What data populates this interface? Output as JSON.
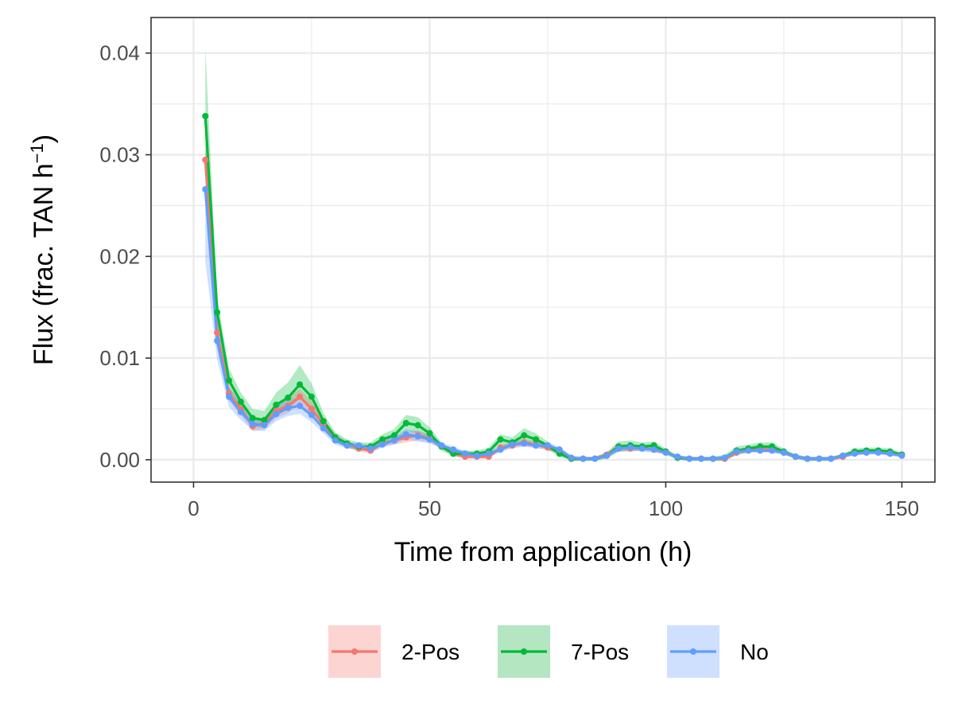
{
  "chart_data": {
    "type": "line",
    "title": "",
    "xlabel": "Time from application (h)",
    "ylabel": "Flux (frac. TAN h",
    "ylabel_superscript": "−1",
    "ylabel_close": ")",
    "xlim": [
      -9,
      157
    ],
    "ylim": [
      -0.0022,
      0.0435
    ],
    "x_ticks": [
      0,
      50,
      100,
      150
    ],
    "x_tick_labels": [
      "0",
      "50",
      "100",
      "150"
    ],
    "y_ticks": [
      0,
      0.01,
      0.02,
      0.03,
      0.04
    ],
    "y_tick_labels": [
      "0.00",
      "0.01",
      "0.02",
      "0.03",
      "0.04"
    ],
    "grid": true,
    "legend_position": "bottom",
    "x": [
      2.5,
      5,
      7.5,
      10,
      12.5,
      15,
      17.5,
      20,
      22.5,
      25,
      27.5,
      30,
      32.5,
      35,
      37.5,
      40,
      42.5,
      45,
      47.5,
      50,
      52.5,
      55,
      57.5,
      60,
      62.5,
      65,
      67.5,
      70,
      72.5,
      75,
      77.5,
      80,
      82.5,
      85,
      87.5,
      90,
      92.5,
      95,
      97.5,
      100,
      102.5,
      105,
      107.5,
      110,
      112.5,
      115,
      117.5,
      120,
      122.5,
      125,
      127.5,
      130,
      132.5,
      135,
      137.5,
      140,
      142.5,
      145,
      147.5,
      150
    ],
    "series": [
      {
        "name": "2-Pos",
        "color": "#F8766D",
        "fill": "#fcd5d2",
        "values": [
          0.0295,
          0.0125,
          0.0065,
          0.005,
          0.0033,
          0.0036,
          0.0048,
          0.0053,
          0.0062,
          0.005,
          0.0035,
          0.0022,
          0.0015,
          0.0011,
          0.0009,
          0.0016,
          0.0019,
          0.0022,
          0.0024,
          0.0021,
          0.0014,
          0.0006,
          0.0003,
          0.0003,
          0.0003,
          0.0012,
          0.0014,
          0.0017,
          0.0015,
          0.0012,
          0.0008,
          0.0001,
          0.0001,
          0.0001,
          0.0005,
          0.0012,
          0.0011,
          0.0012,
          0.001,
          0.0008,
          0.0002,
          0.0001,
          0.0001,
          0.0001,
          0.0001,
          0.0007,
          0.001,
          0.0011,
          0.001,
          0.0007,
          0.0003,
          0.0001,
          0.0001,
          0.0001,
          0.0003,
          0.0007,
          0.0008,
          0.0008,
          0.0006,
          0.0005
        ],
        "upper": [
          0.031,
          0.0135,
          0.0072,
          0.0056,
          0.0038,
          0.0042,
          0.0055,
          0.006,
          0.007,
          0.0057,
          0.004,
          0.0026,
          0.0018,
          0.0014,
          0.0012,
          0.0019,
          0.0023,
          0.0027,
          0.0029,
          0.0025,
          0.0017,
          0.0008,
          0.0005,
          0.0005,
          0.0005,
          0.0015,
          0.0017,
          0.0021,
          0.0018,
          0.0015,
          0.001,
          0.0003,
          0.0003,
          0.0003,
          0.0008,
          0.0016,
          0.0014,
          0.0015,
          0.0013,
          0.001,
          0.0004,
          0.0003,
          0.0003,
          0.0003,
          0.0003,
          0.001,
          0.0013,
          0.0014,
          0.0013,
          0.0009,
          0.0005,
          0.0003,
          0.0003,
          0.0003,
          0.0005,
          0.0009,
          0.001,
          0.001,
          0.0008,
          0.0007
        ],
        "lower": [
          0.028,
          0.0115,
          0.0058,
          0.0044,
          0.0028,
          0.003,
          0.0041,
          0.0046,
          0.0054,
          0.0043,
          0.003,
          0.0018,
          0.0012,
          0.0008,
          0.0006,
          0.0013,
          0.0015,
          0.0017,
          0.0019,
          0.0017,
          0.0011,
          0.0004,
          0.0001,
          0.0001,
          0.0001,
          0.0009,
          0.0011,
          0.0013,
          0.0012,
          0.0009,
          0.0006,
          -0.0001,
          -0.0001,
          -0.0001,
          0.0002,
          0.0008,
          0.0008,
          0.0009,
          0.0007,
          0.0006,
          0.0,
          -0.0001,
          -0.0001,
          -0.0001,
          -0.0001,
          0.0004,
          0.0007,
          0.0008,
          0.0007,
          0.0005,
          0.0001,
          -0.0001,
          -0.0001,
          -0.0001,
          0.0001,
          0.0005,
          0.0006,
          0.0006,
          0.0004,
          0.0003
        ]
      },
      {
        "name": "7-Pos",
        "color": "#00BA38",
        "fill": "#b3e6c1",
        "values": [
          0.0338,
          0.0145,
          0.0078,
          0.0057,
          0.0041,
          0.0039,
          0.0054,
          0.0061,
          0.0074,
          0.0062,
          0.0038,
          0.0022,
          0.0016,
          0.0013,
          0.0013,
          0.002,
          0.0024,
          0.0036,
          0.0034,
          0.0026,
          0.0013,
          0.0006,
          0.0006,
          0.0006,
          0.0008,
          0.002,
          0.0017,
          0.0024,
          0.002,
          0.0014,
          0.0006,
          0.0001,
          0.0001,
          0.0001,
          0.0004,
          0.0013,
          0.0014,
          0.0013,
          0.0014,
          0.0008,
          0.0002,
          0.0001,
          0.0001,
          0.0001,
          0.0002,
          0.0009,
          0.0011,
          0.0013,
          0.0013,
          0.0008,
          0.0003,
          0.0001,
          0.0001,
          0.0001,
          0.0004,
          0.0008,
          0.0009,
          0.0009,
          0.0008,
          0.0005
        ],
        "upper": [
          0.0405,
          0.016,
          0.009,
          0.0066,
          0.005,
          0.0048,
          0.0066,
          0.0076,
          0.0093,
          0.0075,
          0.0046,
          0.0027,
          0.002,
          0.0017,
          0.0017,
          0.0025,
          0.003,
          0.0044,
          0.0042,
          0.0032,
          0.0017,
          0.0009,
          0.0009,
          0.0009,
          0.0012,
          0.0025,
          0.0022,
          0.0031,
          0.0026,
          0.0018,
          0.0009,
          0.0003,
          0.0003,
          0.0003,
          0.0007,
          0.0018,
          0.0019,
          0.0017,
          0.0018,
          0.0011,
          0.0004,
          0.0003,
          0.0003,
          0.0003,
          0.0005,
          0.0013,
          0.0015,
          0.0017,
          0.0017,
          0.0011,
          0.0005,
          0.0003,
          0.0003,
          0.0003,
          0.0006,
          0.0011,
          0.0012,
          0.0012,
          0.0011,
          0.0007
        ],
        "lower": [
          0.029,
          0.013,
          0.0066,
          0.0048,
          0.0033,
          0.0031,
          0.0044,
          0.005,
          0.006,
          0.005,
          0.003,
          0.0017,
          0.0012,
          0.0009,
          0.0009,
          0.0015,
          0.0018,
          0.0028,
          0.0026,
          0.002,
          0.0009,
          0.0003,
          0.0003,
          0.0003,
          0.0004,
          0.0015,
          0.0012,
          0.0017,
          0.0014,
          0.001,
          0.0003,
          -0.0001,
          -0.0001,
          -0.0001,
          0.0001,
          0.0008,
          0.0009,
          0.0009,
          0.001,
          0.0005,
          0.0,
          -0.0001,
          -0.0001,
          -0.0001,
          -0.0001,
          0.0005,
          0.0007,
          0.0009,
          0.0009,
          0.0005,
          0.0001,
          -0.0001,
          -0.0001,
          -0.0001,
          0.0002,
          0.0005,
          0.0006,
          0.0006,
          0.0005,
          0.0003
        ]
      },
      {
        "name": "No",
        "color": "#619CFF",
        "fill": "#cfe0fe",
        "values": [
          0.0266,
          0.0117,
          0.0062,
          0.0047,
          0.0035,
          0.0034,
          0.0045,
          0.0051,
          0.0053,
          0.0044,
          0.0031,
          0.0019,
          0.0014,
          0.0014,
          0.0011,
          0.0015,
          0.0019,
          0.0025,
          0.0023,
          0.002,
          0.0014,
          0.001,
          0.0006,
          0.0004,
          0.0006,
          0.001,
          0.0015,
          0.0016,
          0.0014,
          0.0014,
          0.001,
          0.0002,
          0.0001,
          0.0001,
          0.0004,
          0.0011,
          0.0012,
          0.0011,
          0.001,
          0.0007,
          0.0003,
          0.0001,
          0.0001,
          0.0001,
          0.0002,
          0.0008,
          0.0009,
          0.0009,
          0.0009,
          0.0007,
          0.0003,
          0.0001,
          0.0001,
          0.0001,
          0.0004,
          0.0006,
          0.0007,
          0.0007,
          0.0006,
          0.0004
        ],
        "upper": [
          0.0305,
          0.0135,
          0.0072,
          0.0055,
          0.0041,
          0.004,
          0.0052,
          0.0059,
          0.0061,
          0.0051,
          0.0036,
          0.0023,
          0.0017,
          0.0017,
          0.0014,
          0.0018,
          0.0023,
          0.003,
          0.0028,
          0.0024,
          0.0017,
          0.0013,
          0.0009,
          0.0006,
          0.0009,
          0.0013,
          0.0018,
          0.0019,
          0.0017,
          0.0017,
          0.0013,
          0.0004,
          0.0003,
          0.0003,
          0.0006,
          0.0014,
          0.0015,
          0.0014,
          0.0013,
          0.0009,
          0.0005,
          0.0003,
          0.0003,
          0.0003,
          0.0004,
          0.001,
          0.0011,
          0.0011,
          0.0011,
          0.0009,
          0.0005,
          0.0003,
          0.0003,
          0.0003,
          0.0006,
          0.0008,
          0.0009,
          0.0009,
          0.0008,
          0.0006
        ],
        "lower": [
          0.0195,
          0.0098,
          0.0052,
          0.0039,
          0.0029,
          0.0028,
          0.0038,
          0.0043,
          0.0045,
          0.0037,
          0.0026,
          0.0015,
          0.0011,
          0.0011,
          0.0008,
          0.0012,
          0.0015,
          0.002,
          0.0018,
          0.0016,
          0.0011,
          0.0007,
          0.0003,
          0.0002,
          0.0003,
          0.0007,
          0.0012,
          0.0013,
          0.0011,
          0.0011,
          0.0007,
          0.0,
          -0.0001,
          -0.0001,
          0.0002,
          0.0008,
          0.0009,
          0.0008,
          0.0007,
          0.0005,
          0.0001,
          -0.0001,
          -0.0001,
          -0.0001,
          0.0,
          0.0006,
          0.0007,
          0.0007,
          0.0007,
          0.0005,
          0.0001,
          -0.0001,
          -0.0001,
          -0.0001,
          0.0002,
          0.0004,
          0.0005,
          0.0005,
          0.0004,
          0.0002
        ]
      }
    ]
  }
}
